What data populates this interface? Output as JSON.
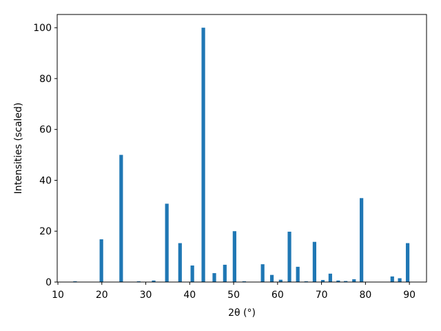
{
  "chart_data": {
    "type": "bar",
    "x_label": "2θ (°)",
    "y_label": "Intensities (scaled)",
    "x": [
      13.9,
      19.9,
      24.4,
      28.4,
      31.8,
      34.8,
      37.8,
      40.6,
      43.1,
      45.6,
      48.0,
      50.2,
      52.4,
      56.6,
      58.7,
      60.7,
      62.7,
      64.6,
      66.5,
      68.4,
      70.3,
      72.0,
      73.8,
      75.5,
      77.4,
      79.1,
      86.1,
      87.8,
      89.6
    ],
    "values": [
      0.3,
      16.8,
      50,
      0.3,
      0.6,
      30.8,
      15.3,
      6.5,
      100,
      3.5,
      6.8,
      20,
      0.3,
      7,
      2.8,
      0.9,
      19.8,
      6,
      0.3,
      15.8,
      0.8,
      3.3,
      0.6,
      0.4,
      1.1,
      33,
      2.2,
      1.5,
      15.3
    ],
    "color": "#1f77b4",
    "xlim": [
      9.84,
      93.9
    ],
    "ylim": [
      0,
      105.2
    ],
    "xticks": [
      10,
      20,
      30,
      40,
      50,
      60,
      70,
      80,
      90
    ],
    "yticks": [
      0,
      20,
      40,
      60,
      80,
      100
    ]
  }
}
